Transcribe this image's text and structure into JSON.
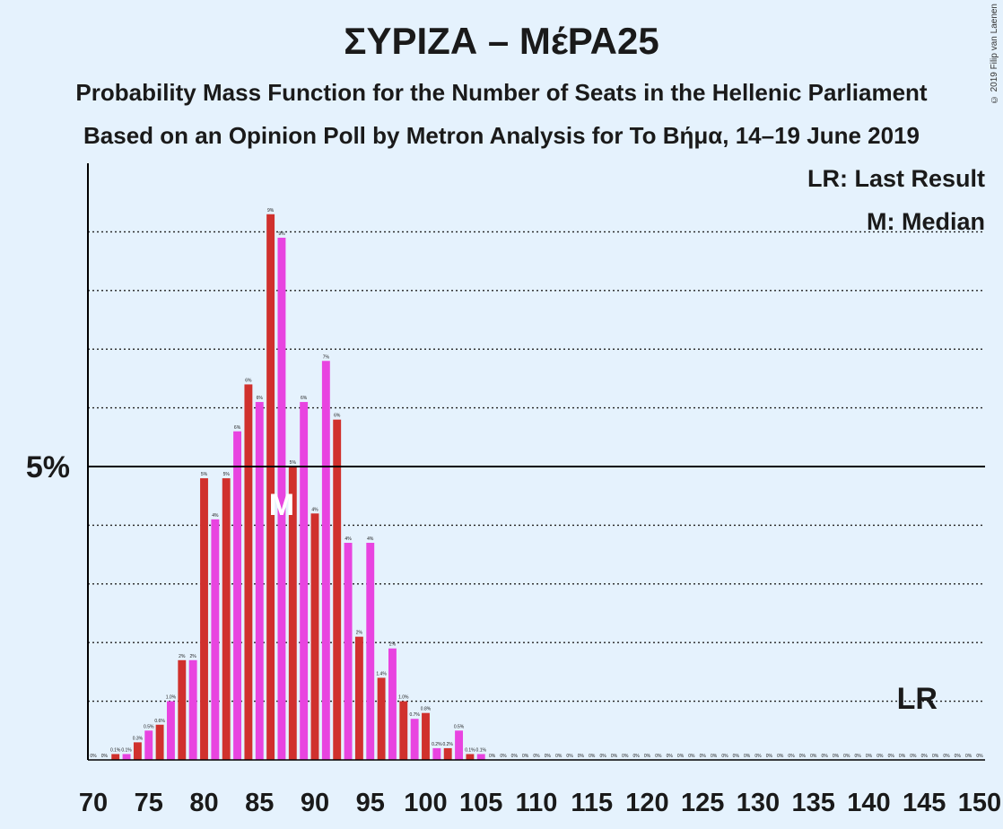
{
  "title": "ΣΥΡΙΖΑ – ΜέΡΑ25",
  "subtitle1": "Probability Mass Function for the Number of Seats in the Hellenic Parliament",
  "subtitle2": "Based on an Opinion Poll by Metron Analysis for To Βήμα, 14–19 June 2019",
  "copyright": "© 2019 Filip van Laenen",
  "legend": {
    "lr": "LR: Last Result",
    "median": "M: Median"
  },
  "colors": {
    "background": "#e5f2fd",
    "bar_even": "#d0312d",
    "bar_odd": "#e844e0",
    "axis": "#000000",
    "text": "#1a1a1a"
  },
  "chart_data": {
    "type": "bar",
    "x": [
      70,
      71,
      72,
      73,
      74,
      75,
      76,
      77,
      78,
      79,
      80,
      81,
      82,
      83,
      84,
      85,
      86,
      87,
      88,
      89,
      90,
      91,
      92,
      93,
      94,
      95,
      96,
      97,
      98,
      99,
      100,
      101,
      102,
      103,
      104,
      105,
      106,
      107,
      108,
      109,
      110,
      111,
      112,
      113,
      114,
      115,
      116,
      117,
      118,
      119,
      120,
      121,
      122,
      123,
      124,
      125,
      126,
      127,
      128,
      129,
      130,
      131,
      132,
      133,
      134,
      135,
      136,
      137,
      138,
      139,
      140,
      141,
      142,
      143,
      144,
      145,
      146,
      147,
      148,
      149,
      150
    ],
    "values": [
      0,
      0,
      0.1,
      0.1,
      0.3,
      0.5,
      0.6,
      1.0,
      1.7,
      1.7,
      4.8,
      4.1,
      4.8,
      5.6,
      6.4,
      6.1,
      9.3,
      8.9,
      5.0,
      6.1,
      4.2,
      6.8,
      5.8,
      3.7,
      2.1,
      3.7,
      1.4,
      1.9,
      1.0,
      0.7,
      0.8,
      0.2,
      0.2,
      0.5,
      0.1,
      0.1,
      0,
      0,
      0,
      0,
      0,
      0,
      0,
      0,
      0,
      0,
      0,
      0,
      0,
      0,
      0,
      0,
      0,
      0,
      0,
      0,
      0,
      0,
      0,
      0,
      0,
      0,
      0,
      0,
      0,
      0,
      0,
      0,
      0,
      0,
      0,
      0,
      0,
      0,
      0,
      0,
      0,
      0,
      0,
      0,
      0
    ],
    "labels": [
      "0%",
      "0%",
      "0.1%",
      "0.1%",
      "0.3%",
      "0.5%",
      "0.6%",
      "1.0%",
      "2%",
      "2%",
      "5%",
      "4%",
      "5%",
      "6%",
      "6%",
      "6%",
      "9%",
      "9%",
      "5%",
      "6%",
      "4%",
      "7%",
      "6%",
      "4%",
      "2%",
      "4%",
      "1.4%",
      "2%",
      "1.0%",
      "0.7%",
      "0.8%",
      "0.2%",
      "0.2%",
      "0.5%",
      "0.1%",
      "0.1%",
      "0%",
      "0%",
      "0%",
      "0%",
      "0%",
      "0%",
      "0%",
      "0%",
      "0%",
      "0%",
      "0%",
      "0%",
      "0%",
      "0%",
      "0%",
      "0%",
      "0%",
      "0%",
      "0%",
      "0%",
      "0%",
      "0%",
      "0%",
      "0%",
      "0%",
      "0%",
      "0%",
      "0%",
      "0%",
      "0%",
      "0%",
      "0%",
      "0%",
      "0%",
      "0%",
      "0%",
      "0%",
      "0%",
      "0%",
      "0%",
      "0%",
      "0%",
      "0%",
      "0%",
      "0%"
    ],
    "xticks": [
      70,
      75,
      80,
      85,
      90,
      95,
      100,
      105,
      110,
      115,
      120,
      125,
      130,
      135,
      140,
      145,
      150
    ],
    "ylim": [
      0,
      10
    ],
    "y_major_tick": {
      "value": 5,
      "label": "5%"
    },
    "y_minor_gridlines": [
      1,
      2,
      3,
      4,
      6,
      7,
      8,
      9
    ],
    "median": {
      "x": 87,
      "label": "M"
    },
    "last_result": {
      "x": 145,
      "label": "LR"
    }
  }
}
